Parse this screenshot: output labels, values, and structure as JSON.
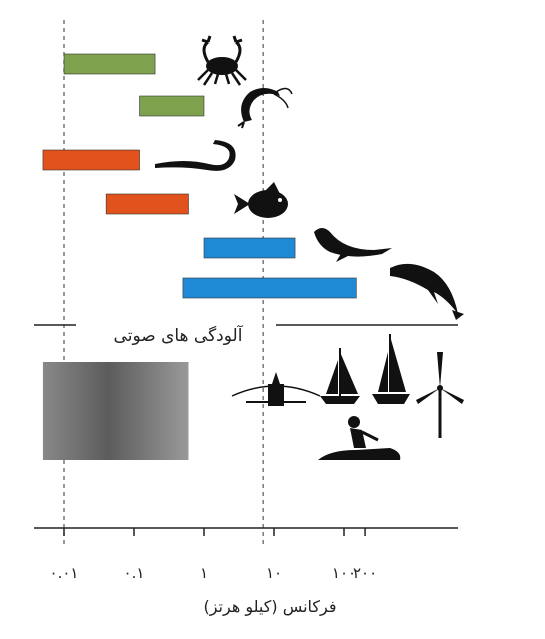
{
  "chart_data": {
    "type": "bar",
    "subtype": "horizontal-range",
    "x_scale": "log",
    "xlabel": "فرکانس (کیلو هرتز)",
    "xlim": [
      0.003,
      500
    ],
    "x_ticks": [
      {
        "value": 0.01,
        "label": "۰.۰۱"
      },
      {
        "value": 0.1,
        "label": "۰.۱"
      },
      {
        "value": 1,
        "label": "۱"
      },
      {
        "value": 10,
        "label": "۱۰"
      },
      {
        "value": 100,
        "label": "۱۰۰"
      },
      {
        "value": 200,
        "label": "۲۰۰"
      }
    ],
    "reference_lines": [
      0.01,
      7
    ],
    "series": [
      {
        "icon": "crab-icon",
        "range": [
          0.01,
          0.2
        ],
        "color": "#7ea14e"
      },
      {
        "icon": "shrimp-icon",
        "range": [
          0.12,
          1
        ],
        "color": "#7ea14e"
      },
      {
        "icon": "eel-icon",
        "range": [
          0.005,
          0.12
        ],
        "color": "#e2521c"
      },
      {
        "icon": "fish-icon",
        "range": [
          0.04,
          0.6
        ],
        "color": "#e2521c"
      },
      {
        "icon": "seal-icon",
        "range": [
          1,
          20
        ],
        "color": "#1e8ad6"
      },
      {
        "icon": "dolphin-icon",
        "range": [
          0.5,
          150
        ],
        "color": "#1e8ad6"
      }
    ],
    "noise_section": {
      "label": "آلودگی های صوتی",
      "range": [
        0.005,
        0.6
      ],
      "icons": [
        "boat-icon",
        "sailboat-icon",
        "sailboat-large-icon",
        "wind-turbine-icon",
        "jetski-icon"
      ]
    }
  }
}
